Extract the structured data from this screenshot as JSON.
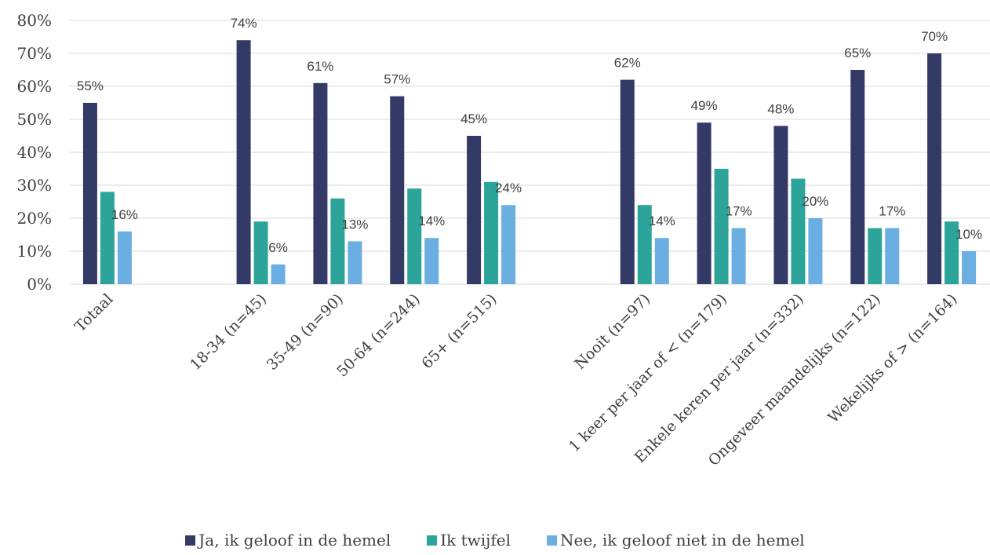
{
  "chart_data": {
    "type": "bar",
    "categories": [
      "Totaal",
      "",
      "18-34 (n=45)",
      "35-49 (n=90)",
      "50-64 (n=244)",
      "65+ (n=515)",
      "",
      "Nooit (n=97)",
      "1 keer per jaar of < (n=179)",
      "Enkele keren per jaar (n=332)",
      "Ongeveer maandelijks (n=122)",
      "Wekelijks of > (n=164)"
    ],
    "series": [
      {
        "name": "Ja, ik geloof in de hemel",
        "color": "#333a66",
        "values": [
          55,
          null,
          74,
          61,
          57,
          45,
          null,
          62,
          49,
          48,
          65,
          70
        ]
      },
      {
        "name": "Ik twijfel",
        "color": "#2ca49a",
        "values": [
          28,
          null,
          19,
          26,
          29,
          31,
          null,
          24,
          35,
          32,
          17,
          19
        ]
      },
      {
        "name": "Nee, ik geloof niet in de hemel",
        "color": "#6aaee2",
        "values": [
          16,
          null,
          6,
          13,
          14,
          24,
          null,
          14,
          17,
          20,
          17,
          10
        ]
      }
    ],
    "data_labels": [
      [
        "55%",
        "",
        "74%",
        "61%",
        "57%",
        "45%",
        "",
        "62%",
        "49%",
        "48%",
        "65%",
        "70%"
      ],
      [
        "",
        "",
        "",
        "",
        "",
        "",
        "",
        "",
        "",
        "",
        "",
        ""
      ],
      [
        "16%",
        "",
        "6%",
        "13%",
        "14%",
        "24%",
        "",
        "14%",
        "17%",
        "20%",
        "17%",
        "10%"
      ]
    ],
    "y_ticks": [
      "0%",
      "10%",
      "20%",
      "30%",
      "40%",
      "50%",
      "60%",
      "70%",
      "80%"
    ],
    "ylim": [
      0,
      80
    ],
    "grid": true,
    "legend_position": "bottom"
  }
}
